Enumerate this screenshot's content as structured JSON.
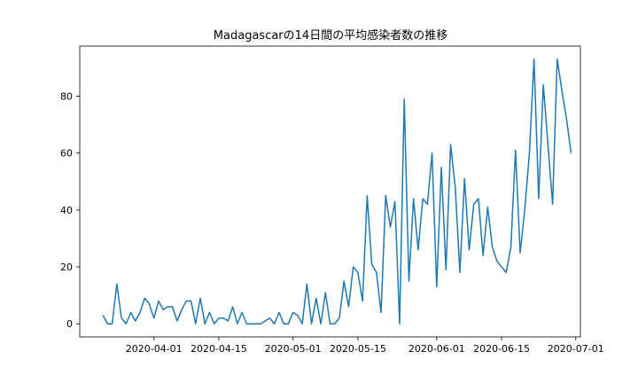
{
  "chart_data": {
    "type": "line",
    "title": "Madagascarの14日間の平均感染者数の推移",
    "xlabel": "",
    "ylabel": "",
    "x_axis": {
      "type": "date",
      "range": [
        "2020-03-16",
        "2020-07-02"
      ],
      "ticks": [
        "2020-04-01",
        "2020-04-15",
        "2020-05-01",
        "2020-05-15",
        "2020-06-01",
        "2020-06-15",
        "2020-07-01"
      ]
    },
    "ylim": [
      -4.6,
      97.6
    ],
    "yticks": [
      0,
      20,
      40,
      60,
      80
    ],
    "grid": false,
    "line_color": "#1f77b4",
    "series": [
      {
        "x": [
          "2020-03-21",
          "2020-03-22",
          "2020-03-23",
          "2020-03-24",
          "2020-03-25",
          "2020-03-26",
          "2020-03-27",
          "2020-03-28",
          "2020-03-29",
          "2020-03-30",
          "2020-03-31",
          "2020-04-01",
          "2020-04-02",
          "2020-04-03",
          "2020-04-04",
          "2020-04-05",
          "2020-04-06",
          "2020-04-07",
          "2020-04-08",
          "2020-04-09",
          "2020-04-10",
          "2020-04-11",
          "2020-04-12",
          "2020-04-13",
          "2020-04-14",
          "2020-04-15",
          "2020-04-16",
          "2020-04-17",
          "2020-04-18",
          "2020-04-19",
          "2020-04-20",
          "2020-04-21",
          "2020-04-22",
          "2020-04-23",
          "2020-04-24",
          "2020-04-25",
          "2020-04-26",
          "2020-04-27",
          "2020-04-28",
          "2020-04-29",
          "2020-04-30",
          "2020-05-01",
          "2020-05-02",
          "2020-05-03",
          "2020-05-04",
          "2020-05-05",
          "2020-05-06",
          "2020-05-07",
          "2020-05-08",
          "2020-05-09",
          "2020-05-10",
          "2020-05-11",
          "2020-05-12",
          "2020-05-13",
          "2020-05-14",
          "2020-05-15",
          "2020-05-16",
          "2020-05-17",
          "2020-05-18",
          "2020-05-19",
          "2020-05-20",
          "2020-05-21",
          "2020-05-22",
          "2020-05-23",
          "2020-05-24",
          "2020-05-25",
          "2020-05-26",
          "2020-05-27",
          "2020-05-28",
          "2020-05-29",
          "2020-05-30",
          "2020-05-31",
          "2020-06-01",
          "2020-06-02",
          "2020-06-03",
          "2020-06-04",
          "2020-06-05",
          "2020-06-06",
          "2020-06-07",
          "2020-06-08",
          "2020-06-09",
          "2020-06-10",
          "2020-06-11",
          "2020-06-12",
          "2020-06-13",
          "2020-06-14",
          "2020-06-15",
          "2020-06-16",
          "2020-06-17",
          "2020-06-18",
          "2020-06-19",
          "2020-06-20",
          "2020-06-21",
          "2020-06-22",
          "2020-06-23",
          "2020-06-24",
          "2020-06-25",
          "2020-06-26",
          "2020-06-27",
          "2020-06-28",
          "2020-06-29",
          "2020-06-30"
        ],
        "y": [
          3,
          0,
          0,
          14,
          2,
          0,
          4,
          1,
          4,
          9,
          7,
          2,
          8,
          5,
          6,
          6,
          1,
          5,
          8,
          8,
          0,
          9,
          0,
          4,
          0,
          2,
          2,
          1,
          6,
          0,
          4,
          0,
          0,
          0,
          0,
          1,
          2,
          0,
          4,
          0,
          0,
          4,
          3,
          0,
          14,
          0,
          9,
          0,
          11,
          0,
          0,
          2,
          15,
          6,
          20,
          18,
          8,
          45,
          21,
          18,
          4,
          45,
          34,
          43,
          0,
          79,
          15,
          44,
          26,
          44,
          42,
          60,
          13,
          55,
          19,
          63,
          48,
          18,
          51,
          26,
          42,
          44,
          24,
          41,
          27,
          22,
          20,
          18,
          27,
          61,
          25,
          40,
          60,
          93,
          44,
          84,
          63,
          42,
          93,
          82,
          72,
          60
        ]
      }
    ]
  }
}
